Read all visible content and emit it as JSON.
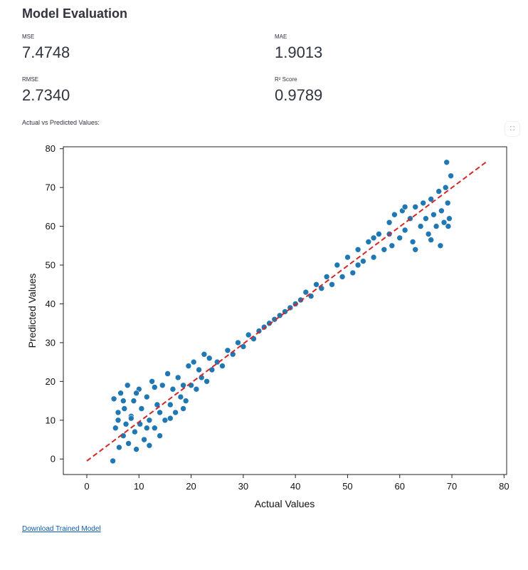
{
  "page": {
    "title": "Model Evaluation",
    "caption": "Actual vs Predicted Values:",
    "download_label": "Download Trained Model"
  },
  "metrics": [
    {
      "label": "MSE",
      "value": "7.4748"
    },
    {
      "label": "MAE",
      "value": "1.9013"
    },
    {
      "label": "RMSE",
      "value": "2.7340"
    },
    {
      "label": "R² Score",
      "value": "0.9789"
    }
  ],
  "icons": {
    "expand": "expand-icon"
  },
  "colors": {
    "points": "#1f77b4",
    "reference_line": "#d62728",
    "link": "#0b5cad"
  },
  "chart_data": {
    "type": "scatter",
    "xlabel": "Actual Values",
    "ylabel": "Predicted Values",
    "xlim": [
      -4.5,
      80.5
    ],
    "ylim": [
      -4,
      80.5
    ],
    "xticks": [
      0,
      10,
      20,
      30,
      40,
      50,
      60,
      70,
      80
    ],
    "yticks": [
      0,
      10,
      20,
      30,
      40,
      50,
      60,
      70,
      80
    ],
    "grid": false,
    "reference_line": {
      "x": [
        0,
        76.5
      ],
      "y": [
        -0.5,
        76.5
      ],
      "style": "dashed"
    },
    "points": [
      [
        5,
        -0.5
      ],
      [
        5.2,
        15.5
      ],
      [
        5.5,
        8
      ],
      [
        6,
        12
      ],
      [
        6.2,
        3
      ],
      [
        6.5,
        17
      ],
      [
        7,
        6
      ],
      [
        7.2,
        13
      ],
      [
        7.5,
        9
      ],
      [
        7.8,
        19
      ],
      [
        8,
        4
      ],
      [
        8.5,
        11
      ],
      [
        9,
        15
      ],
      [
        9.2,
        7
      ],
      [
        9.5,
        2.5
      ],
      [
        10,
        18
      ],
      [
        10.2,
        9
      ],
      [
        10.5,
        13
      ],
      [
        11,
        5
      ],
      [
        11.5,
        16
      ],
      [
        12,
        10
      ],
      [
        12.5,
        20
      ],
      [
        13,
        8
      ],
      [
        13.5,
        14
      ],
      [
        14,
        12
      ],
      [
        14.5,
        19
      ],
      [
        15,
        10
      ],
      [
        15.5,
        22
      ],
      [
        16,
        14
      ],
      [
        16.5,
        18
      ],
      [
        17,
        12
      ],
      [
        17.5,
        21
      ],
      [
        18,
        16
      ],
      [
        18.5,
        19
      ],
      [
        19,
        15
      ],
      [
        19.5,
        24
      ],
      [
        20,
        19
      ],
      [
        20.5,
        25
      ],
      [
        21,
        18
      ],
      [
        21.5,
        23
      ],
      [
        22,
        21
      ],
      [
        22.5,
        27
      ],
      [
        23,
        20
      ],
      [
        23.5,
        26
      ],
      [
        24,
        23
      ],
      [
        25,
        25
      ],
      [
        26,
        24
      ],
      [
        27,
        28
      ],
      [
        28,
        27
      ],
      [
        29,
        30
      ],
      [
        30,
        29
      ],
      [
        31,
        32
      ],
      [
        32,
        31
      ],
      [
        33,
        33
      ],
      [
        34,
        34
      ],
      [
        35,
        35
      ],
      [
        36,
        36
      ],
      [
        37,
        37
      ],
      [
        38,
        38
      ],
      [
        39,
        39
      ],
      [
        40,
        40
      ],
      [
        41,
        41
      ],
      [
        42,
        43
      ],
      [
        43,
        42
      ],
      [
        44,
        45
      ],
      [
        45,
        44
      ],
      [
        46,
        47
      ],
      [
        47,
        45
      ],
      [
        48,
        50
      ],
      [
        49,
        47
      ],
      [
        50,
        52
      ],
      [
        51,
        48
      ],
      [
        52,
        54
      ],
      [
        53,
        51
      ],
      [
        54,
        56
      ],
      [
        55,
        52
      ],
      [
        56,
        58
      ],
      [
        57,
        54
      ],
      [
        58,
        61
      ],
      [
        58.5,
        55
      ],
      [
        59,
        63
      ],
      [
        60,
        57
      ],
      [
        60.5,
        64
      ],
      [
        61,
        59
      ],
      [
        62,
        62
      ],
      [
        62.5,
        56
      ],
      [
        63,
        65
      ],
      [
        64,
        60
      ],
      [
        64.5,
        66
      ],
      [
        65,
        62
      ],
      [
        65.5,
        58
      ],
      [
        66,
        67
      ],
      [
        66.5,
        63
      ],
      [
        67,
        60
      ],
      [
        67.5,
        69
      ],
      [
        68,
        64
      ],
      [
        68.5,
        61
      ],
      [
        69,
        76.5
      ],
      [
        69.2,
        66
      ],
      [
        69.5,
        62
      ],
      [
        69.8,
        73
      ],
      [
        67.8,
        55
      ],
      [
        66,
        56.5
      ],
      [
        63,
        54
      ],
      [
        68.8,
        70
      ],
      [
        69.3,
        60
      ],
      [
        8.5,
        10.5
      ],
      [
        7,
        15
      ],
      [
        6,
        10
      ],
      [
        11.5,
        8
      ],
      [
        13,
        18.5
      ],
      [
        16,
        10.5
      ],
      [
        18.5,
        13
      ],
      [
        9.5,
        17
      ],
      [
        12,
        3.5
      ],
      [
        14,
        6
      ],
      [
        58,
        58
      ],
      [
        61,
        65
      ],
      [
        55,
        57
      ],
      [
        52,
        50
      ]
    ]
  }
}
